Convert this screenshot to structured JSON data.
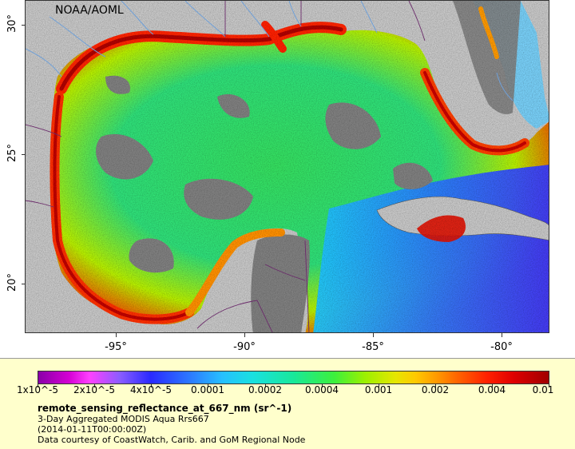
{
  "map": {
    "attribution": "NOAA/AOML",
    "latitude_labels": [
      "30°",
      "25°",
      "20°"
    ],
    "longitude_labels": [
      "-95°",
      "-90°",
      "-85°",
      "-80°"
    ],
    "colors": {
      "land": "#c8c8c8",
      "no_data": "#808080",
      "boundary": "#6b2b6b",
      "river": "#6fa0d8"
    }
  },
  "legend": {
    "colorbar_ticks": [
      "1x10^-5",
      "2x10^-5",
      "4x10^-5",
      "0.0001",
      "0.0002",
      "0.0004",
      "0.001",
      "0.002",
      "0.004",
      "0.01"
    ],
    "variable": "remote_sensing_reflectance_at_667_nm (sr^-1)",
    "line1": "3-Day Aggregated MODIS Aqua Rrs667",
    "line2": "(2014-01-11T00:00:00Z)",
    "line3": "Data courtesy of CoastWatch, Carib. and GoM Regional Node"
  }
}
